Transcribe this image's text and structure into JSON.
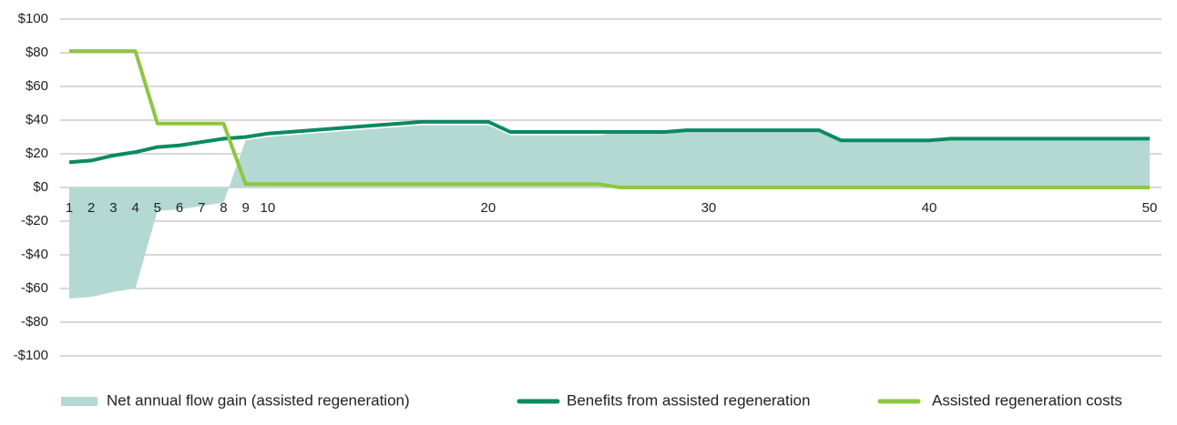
{
  "chart_data": {
    "type": "line",
    "categories": [
      "1",
      "2",
      "3",
      "4",
      "5",
      "6",
      "7",
      "8",
      "9",
      "10",
      null,
      null,
      null,
      null,
      null,
      null,
      null,
      null,
      null,
      "20",
      null,
      null,
      null,
      null,
      null,
      null,
      null,
      null,
      null,
      "30",
      null,
      null,
      null,
      null,
      null,
      null,
      null,
      null,
      null,
      "40",
      null,
      null,
      null,
      null,
      null,
      null,
      null,
      null,
      null,
      "50"
    ],
    "ylim": [
      -100,
      100
    ],
    "yticks": [
      {
        "value": 100,
        "label": "$100"
      },
      {
        "value": 80,
        "label": "$80"
      },
      {
        "value": 60,
        "label": "$60"
      },
      {
        "value": 40,
        "label": "$40"
      },
      {
        "value": 20,
        "label": "$20"
      },
      {
        "value": 0,
        "label": "$0"
      },
      {
        "value": -20,
        "label": "-$20"
      },
      {
        "value": -40,
        "label": "-$40"
      },
      {
        "value": -60,
        "label": "-$60"
      },
      {
        "value": -80,
        "label": "-$80"
      },
      {
        "value": -100,
        "label": "-$100"
      }
    ],
    "grid": true,
    "legend": "bottom",
    "series": [
      {
        "name": "Net annual flow gain (assisted regeneration)",
        "type": "area",
        "color": "#b4d9d2",
        "values": [
          -66,
          -65,
          -62,
          -60,
          -14,
          -13,
          -11,
          -9,
          28,
          30,
          31,
          32,
          33,
          34,
          35,
          36,
          37,
          37,
          37,
          37,
          31,
          31,
          31,
          31,
          31,
          33,
          33,
          33,
          34,
          34,
          34,
          34,
          34,
          34,
          34,
          28,
          28,
          28,
          28,
          28,
          29,
          29,
          29,
          29,
          29,
          29,
          29,
          29,
          29,
          29
        ]
      },
      {
        "name": "Benefits from assisted regeneration",
        "type": "line",
        "color": "#0a8a62",
        "values": [
          15,
          16,
          19,
          21,
          24,
          25,
          27,
          29,
          30,
          32,
          33,
          34,
          35,
          36,
          37,
          38,
          39,
          39,
          39,
          39,
          33,
          33,
          33,
          33,
          33,
          33,
          33,
          33,
          34,
          34,
          34,
          34,
          34,
          34,
          34,
          28,
          28,
          28,
          28,
          28,
          29,
          29,
          29,
          29,
          29,
          29,
          29,
          29,
          29,
          29
        ]
      },
      {
        "name": "Assisted regeneration costs",
        "type": "line",
        "color": "#8dc63f",
        "values": [
          81,
          81,
          81,
          81,
          38,
          38,
          38,
          38,
          2,
          2,
          2,
          2,
          2,
          2,
          2,
          2,
          2,
          2,
          2,
          2,
          2,
          2,
          2,
          2,
          2,
          0,
          0,
          0,
          0,
          0,
          0,
          0,
          0,
          0,
          0,
          0,
          0,
          0,
          0,
          0,
          0,
          0,
          0,
          0,
          0,
          0,
          0,
          0,
          0,
          0
        ]
      }
    ]
  }
}
